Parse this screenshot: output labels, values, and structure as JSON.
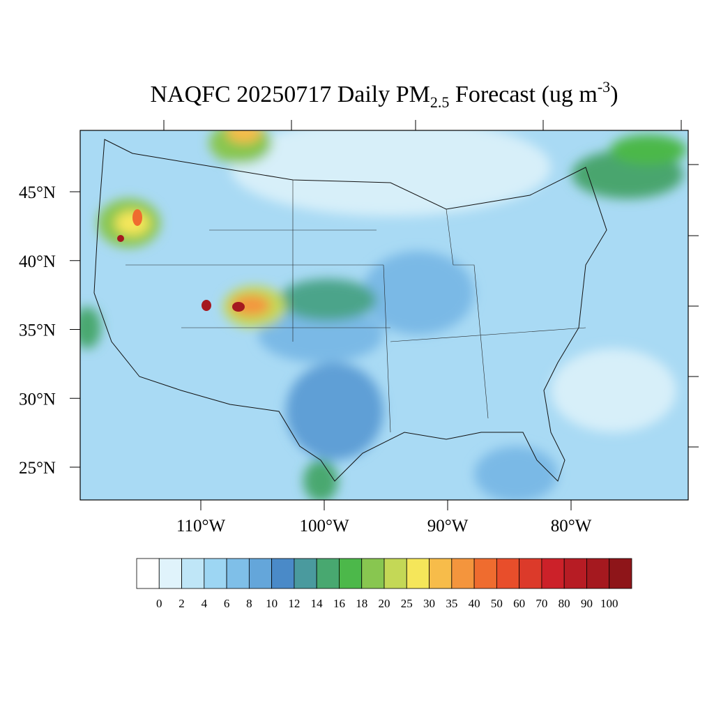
{
  "title": {
    "main": "NAQFC 20250717 Daily PM",
    "sub": "2.5",
    "middle": " Forecast (ug m",
    "sup": "-3",
    "end": ")"
  },
  "map": {
    "lat_ticks": [
      {
        "value": 45,
        "label": "45°N"
      },
      {
        "value": 40,
        "label": "40°N"
      },
      {
        "value": 35,
        "label": "35°N"
      },
      {
        "value": 30,
        "label": "30°N"
      },
      {
        "value": 25,
        "label": "25°N"
      }
    ],
    "lon_ticks": [
      {
        "value": -110,
        "label": "110°W"
      },
      {
        "value": -100,
        "label": "100°W"
      },
      {
        "value": -90,
        "label": "90°W"
      },
      {
        "value": -80,
        "label": "80°W"
      }
    ]
  },
  "colorbar": {
    "levels": [
      0,
      2,
      4,
      6,
      8,
      10,
      12,
      14,
      16,
      18,
      20,
      25,
      30,
      35,
      40,
      50,
      60,
      70,
      80,
      90,
      100
    ],
    "colors": [
      "#ffffff",
      "#e0f3fb",
      "#bfe6f7",
      "#9dd6f3",
      "#7fbfe8",
      "#64a6da",
      "#4a8ac8",
      "#4a9a9e",
      "#48a870",
      "#4cb84a",
      "#88c650",
      "#c4d856",
      "#f5e65a",
      "#f7bc4a",
      "#f4953d",
      "#ef6c2f",
      "#e84e2b",
      "#dc3a2a",
      "#cc2129",
      "#b71c24",
      "#a5191f",
      "#8e1519"
    ]
  }
}
